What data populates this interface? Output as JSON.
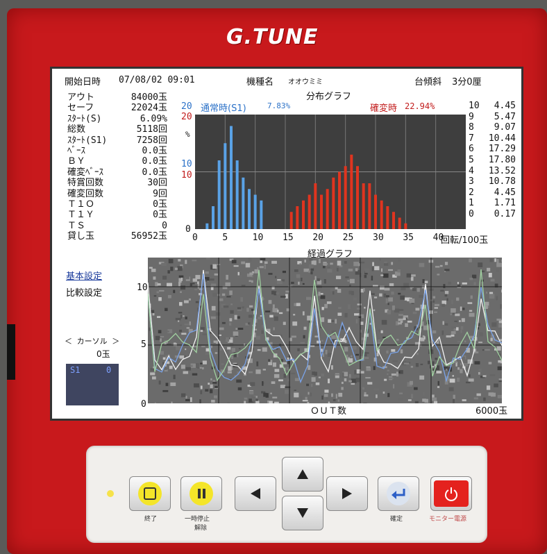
{
  "device": {
    "brand": "G.TUNE"
  },
  "header": {
    "start_label": "開始日時",
    "start_value": "07/08/02 09:01",
    "model_label": "機種名",
    "model_value": "オオウミミ",
    "tilt_label": "台傾斜",
    "tilt_value": "3分0厘"
  },
  "stats": [
    {
      "label": "アウト",
      "value": "84000玉"
    },
    {
      "label": "セーフ",
      "value": "22024玉"
    },
    {
      "label": "ｽﾀｰﾄ(S)",
      "value": "6.09%"
    },
    {
      "label": "  総数",
      "value": "5118回"
    },
    {
      "label": "ｽﾀｰﾄ(S1)",
      "value": "7258回"
    },
    {
      "label": "ﾍﾞｰｽ",
      "value": "0.0玉"
    },
    {
      "label": "ＢＹ",
      "value": "0.0玉"
    },
    {
      "label": "確変ﾍﾞｰｽ",
      "value": "0.0玉"
    },
    {
      "label": "特賞回数",
      "value": "30回"
    },
    {
      "label": "確変回数",
      "value": "9回"
    },
    {
      "label": "Ｔ１Ｏ",
      "value": "0玉"
    },
    {
      "label": "Ｔ１Ｙ",
      "value": "0玉"
    },
    {
      "label": "ＴＳ",
      "value": "0"
    },
    {
      "label": "貸し玉",
      "value": "56952玉"
    }
  ],
  "menu": {
    "basic_settings": "基本設定",
    "compare_settings": "比較設定"
  },
  "cursor": {
    "label": "＜ カーソル ＞",
    "value": "0玉",
    "thumb_left": "S1",
    "thumb_right": "0"
  },
  "dist_graph": {
    "title": "分布グラフ",
    "normal_label": "通常時(S1)",
    "normal_pct": "7.83%",
    "kakuhen_label": "確変時",
    "kakuhen_pct": "22.94%",
    "y_top_blue": "20",
    "y_top_red": "20",
    "y_unit": "%",
    "y_mid_blue": "10",
    "y_mid_red": "10",
    "y_zero": "0",
    "x_ticks": [
      "0",
      "5",
      "10",
      "15",
      "20",
      "25",
      "30",
      "35",
      "40"
    ],
    "x_unit": "回転/100玉",
    "right_table": [
      {
        "n": "10",
        "v": "4.45"
      },
      {
        "n": "9",
        "v": "5.47"
      },
      {
        "n": "8",
        "v": "9.07"
      },
      {
        "n": "7",
        "v": "10.44"
      },
      {
        "n": "6",
        "v": "17.29"
      },
      {
        "n": "5",
        "v": "17.80"
      },
      {
        "n": "4",
        "v": "13.52"
      },
      {
        "n": "3",
        "v": "10.78"
      },
      {
        "n": "2",
        "v": "4.45"
      },
      {
        "n": "1",
        "v": "1.71"
      },
      {
        "n": "0",
        "v": "0.17"
      }
    ]
  },
  "prog_graph": {
    "title": "経過グラフ",
    "y_ticks": [
      "10",
      "5",
      "0"
    ],
    "x_label": "ＯＵＴ数",
    "x_max": "6000玉"
  },
  "chart_data": [
    {
      "type": "bar",
      "x": [
        2,
        3,
        4,
        5,
        6,
        7,
        8,
        9,
        10,
        11,
        16,
        17,
        18,
        19,
        20,
        21,
        22,
        23,
        24,
        25,
        26,
        27,
        28,
        29,
        30,
        31,
        32,
        33,
        34,
        35
      ],
      "series": [
        {
          "name": "通常時(S1)",
          "color": "#5aa2e6",
          "x": [
            2,
            3,
            4,
            5,
            6,
            7,
            8,
            9,
            10,
            11
          ],
          "values": [
            1,
            4,
            12,
            15,
            18,
            12,
            9,
            7,
            6,
            5
          ]
        },
        {
          "name": "確変時",
          "color": "#e0341f",
          "x": [
            16,
            17,
            18,
            19,
            20,
            21,
            22,
            23,
            24,
            25,
            26,
            27,
            28,
            29,
            30,
            31,
            32,
            33,
            34,
            35
          ],
          "values": [
            3,
            4,
            5,
            6,
            8,
            6,
            7,
            9,
            10,
            11,
            13,
            11,
            8,
            8,
            6,
            5,
            4,
            3,
            2,
            1
          ]
        }
      ],
      "xlim": [
        0,
        45
      ],
      "ylim": [
        0,
        20
      ],
      "xlabel": "回転/100玉",
      "ylabel": "%"
    }
  ],
  "controls": {
    "end_caption": "終了",
    "pause_caption_1": "一時停止",
    "pause_caption_2": "解除",
    "enter_caption": "確定",
    "power_caption": "モニター電源"
  },
  "colors": {
    "body": "#c8191c",
    "yellow": "#f5e82a",
    "power": "#e4221e",
    "enter": "#3a6bd6"
  }
}
